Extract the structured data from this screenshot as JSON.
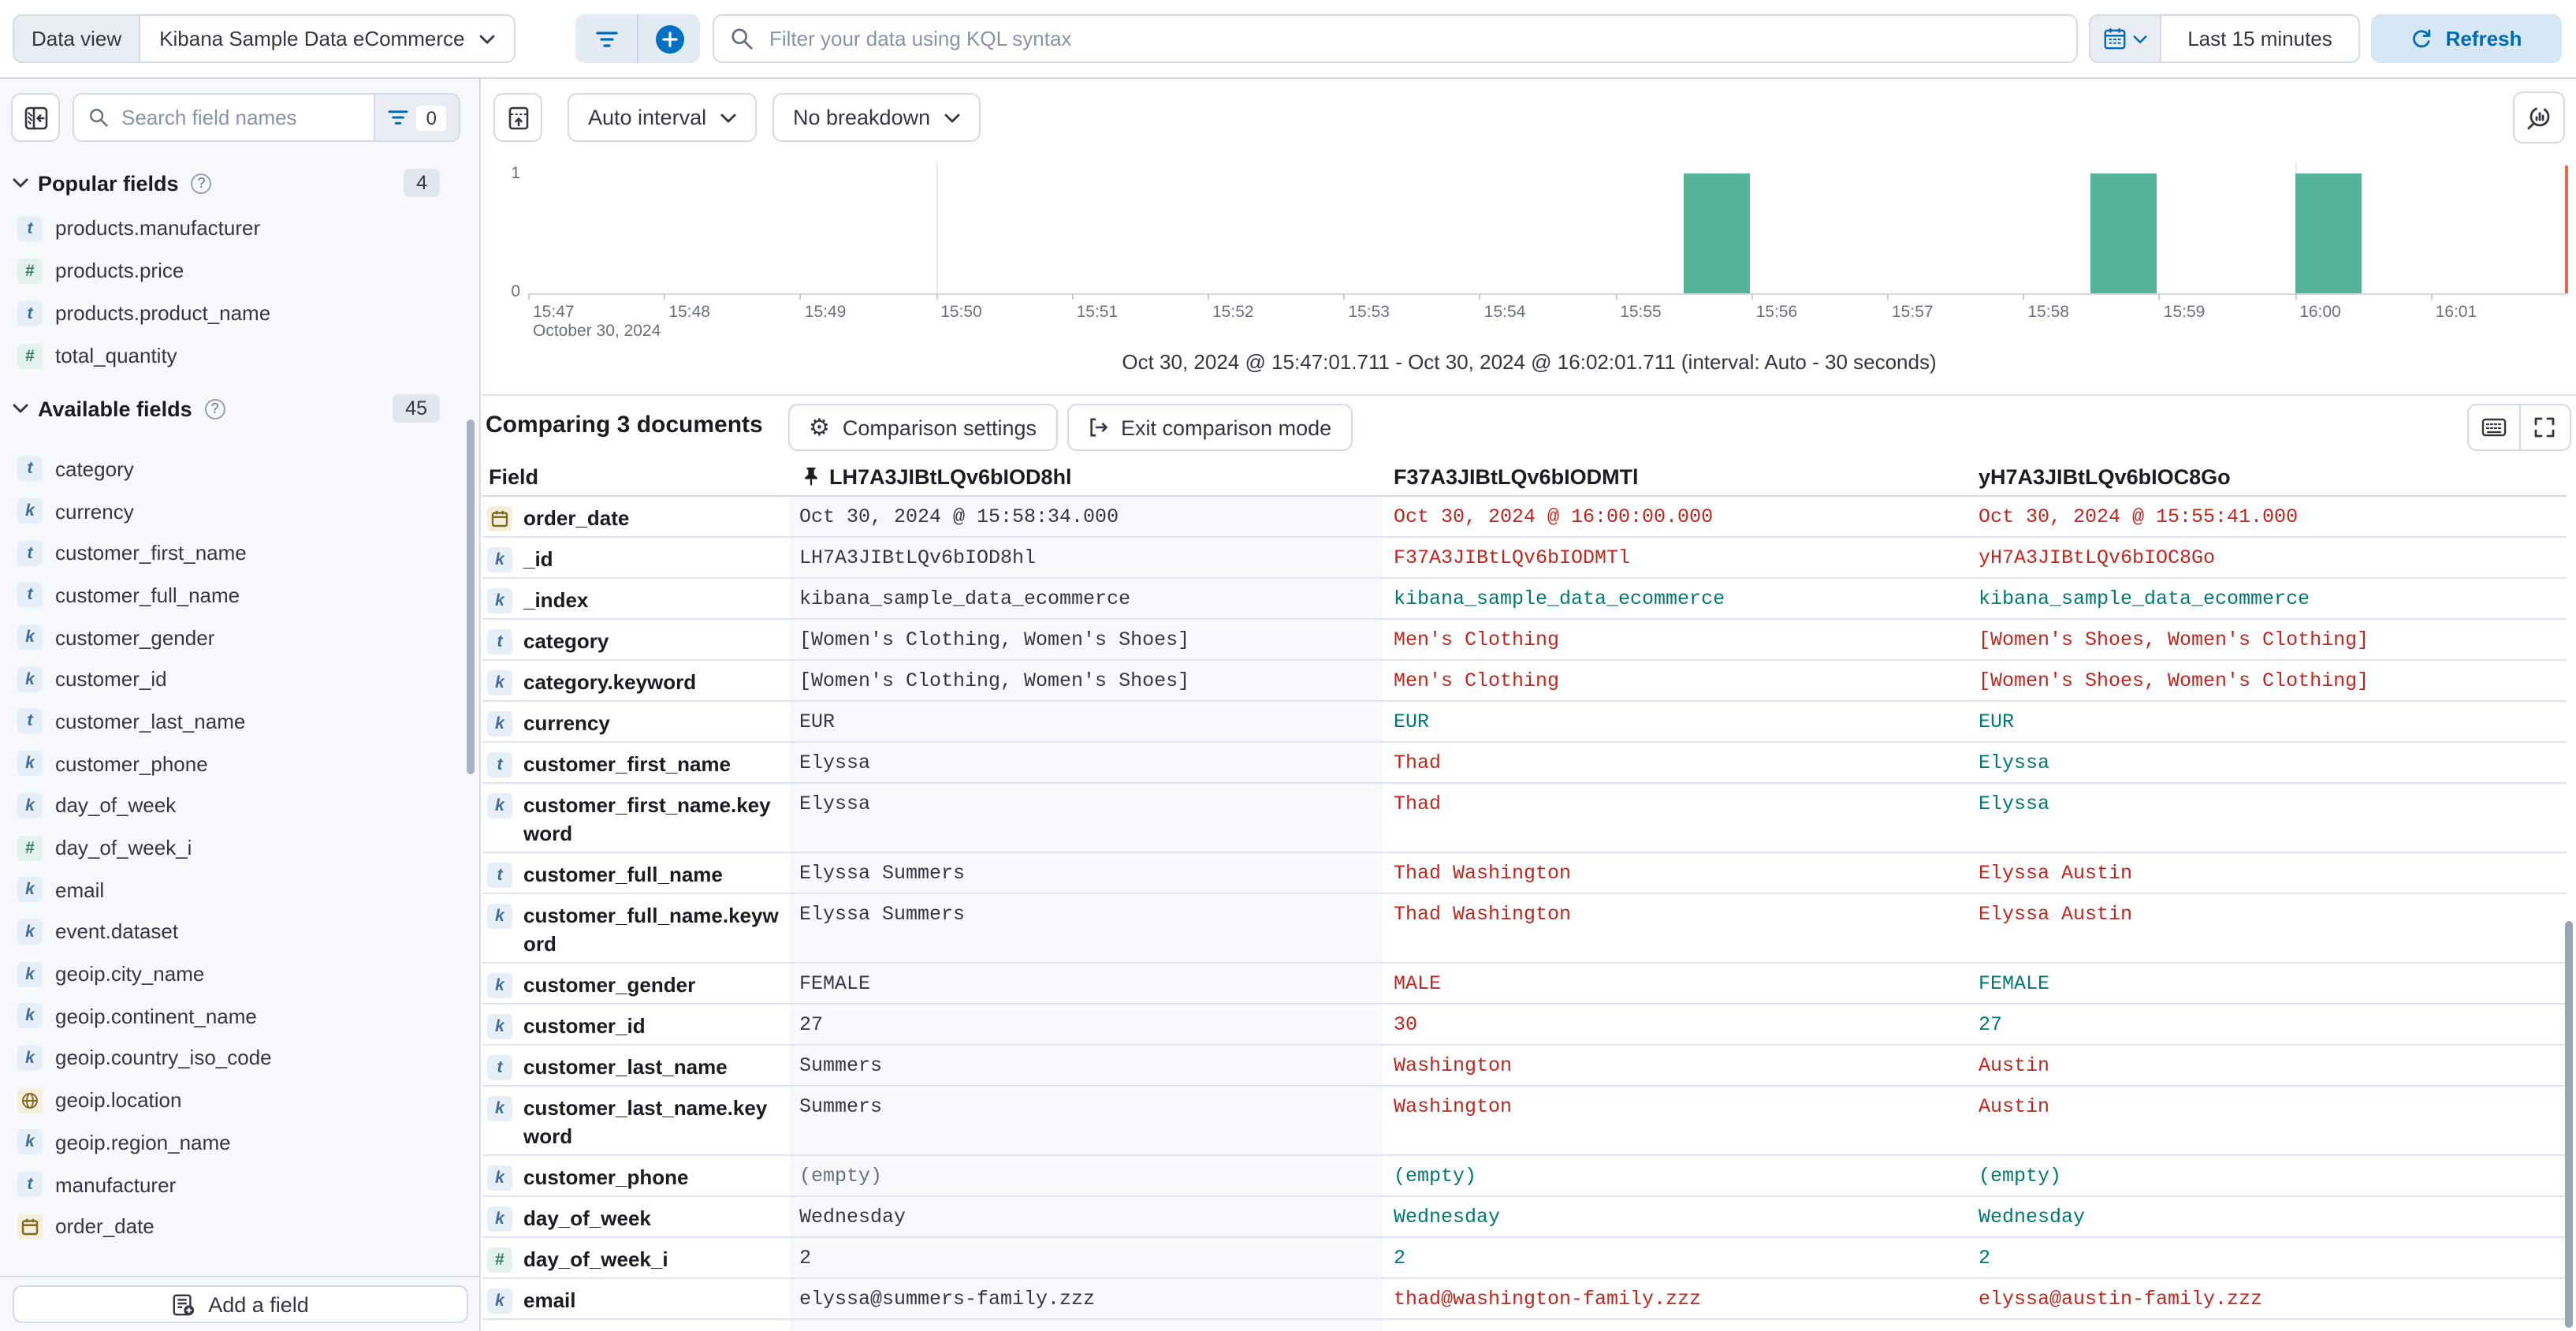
{
  "colors": {
    "accent_blue": "#0071c2",
    "link_blue": "#006bb4",
    "diff_changed_red": "#bd271e",
    "diff_same_teal": "#007871",
    "bar_green": "#54b399",
    "sidebar_bg": "#f7f8fc",
    "border": "#d3dae6"
  },
  "topbar": {
    "data_view_label": "Data view",
    "data_view_value": "Kibana Sample Data eCommerce",
    "kql_placeholder": "Filter your data using KQL syntax",
    "time_range": "Last 15 minutes",
    "refresh_label": "Refresh"
  },
  "sidebar": {
    "search_placeholder": "Search field names",
    "filter_count": "0",
    "popular": {
      "label": "Popular fields",
      "count": "4",
      "items": [
        {
          "token": "text",
          "name": "products.manufacturer"
        },
        {
          "token": "number",
          "name": "products.price"
        },
        {
          "token": "text",
          "name": "products.product_name"
        },
        {
          "token": "number",
          "name": "total_quantity"
        }
      ]
    },
    "available": {
      "label": "Available fields",
      "count": "45",
      "items": [
        {
          "token": "text",
          "name": "category"
        },
        {
          "token": "keyword",
          "name": "currency"
        },
        {
          "token": "text",
          "name": "customer_first_name"
        },
        {
          "token": "text",
          "name": "customer_full_name"
        },
        {
          "token": "keyword",
          "name": "customer_gender"
        },
        {
          "token": "keyword",
          "name": "customer_id"
        },
        {
          "token": "text",
          "name": "customer_last_name"
        },
        {
          "token": "keyword",
          "name": "customer_phone"
        },
        {
          "token": "keyword",
          "name": "day_of_week"
        },
        {
          "token": "number",
          "name": "day_of_week_i"
        },
        {
          "token": "keyword",
          "name": "email"
        },
        {
          "token": "keyword",
          "name": "event.dataset"
        },
        {
          "token": "keyword",
          "name": "geoip.city_name"
        },
        {
          "token": "keyword",
          "name": "geoip.continent_name"
        },
        {
          "token": "keyword",
          "name": "geoip.country_iso_code"
        },
        {
          "token": "geo",
          "name": "geoip.location"
        },
        {
          "token": "keyword",
          "name": "geoip.region_name"
        },
        {
          "token": "text",
          "name": "manufacturer"
        },
        {
          "token": "date",
          "name": "order_date"
        }
      ]
    },
    "add_field_label": "Add a field"
  },
  "histogram": {
    "interval_label": "Auto interval",
    "breakdown_label": "No breakdown"
  },
  "chart_data": {
    "type": "bar",
    "x_ticks": [
      "15:47",
      "15:48",
      "15:49",
      "15:50",
      "15:51",
      "15:52",
      "15:53",
      "15:54",
      "15:55",
      "15:56",
      "15:57",
      "15:58",
      "15:59",
      "16:00",
      "16:01"
    ],
    "x_start": "15:47:00",
    "x_date_label": "October 30, 2024",
    "y_ticks": [
      "1",
      "0"
    ],
    "ylim": [
      0,
      1
    ],
    "gridlines": [
      "15:50",
      "16:00"
    ],
    "bars": [
      {
        "time": "15:55:30",
        "count": 1
      },
      {
        "time": "15:58:30",
        "count": 1
      },
      {
        "time": "16:00:00",
        "count": 1
      }
    ],
    "interval_seconds": 30,
    "time_range_label": "Oct 30, 2024 @ 15:47:01.711 - Oct 30, 2024 @ 16:02:01.711 (interval: Auto - 30 seconds)"
  },
  "comparison": {
    "title": "Comparing 3 documents",
    "settings_label": "Comparison settings",
    "exit_label": "Exit comparison mode",
    "columns": [
      "Field",
      "LH7A3JIBtLQv6bIOD8hl",
      "F37A3JIBtLQv6bIODMTl",
      "yH7A3JIBtLQv6bIOC8Go"
    ],
    "rows": [
      {
        "token": "date",
        "field": "order_date",
        "base": "Oct 30, 2024 @ 15:58:34.000",
        "doc1": {
          "value": "Oct 30, 2024 @ 16:00:00.000",
          "status": "diff"
        },
        "doc2": {
          "value": "Oct 30, 2024 @ 15:55:41.000",
          "status": "diff"
        }
      },
      {
        "token": "keyword",
        "field": "_id",
        "base": "LH7A3JIBtLQv6bIOD8hl",
        "doc1": {
          "value": "F37A3JIBtLQv6bIODMTl",
          "status": "diff"
        },
        "doc2": {
          "value": "yH7A3JIBtLQv6bIOC8Go",
          "status": "diff"
        }
      },
      {
        "token": "keyword",
        "field": "_index",
        "base": "kibana_sample_data_ecommerce",
        "doc1": {
          "value": "kibana_sample_data_ecommerce",
          "status": "same"
        },
        "doc2": {
          "value": "kibana_sample_data_ecommerce",
          "status": "same"
        }
      },
      {
        "token": "text",
        "field": "category",
        "base": "[Women's Clothing, Women's Shoes]",
        "doc1": {
          "value": "Men's Clothing",
          "status": "diff"
        },
        "doc2": {
          "value": "[Women's Shoes, Women's Clothing]",
          "status": "diff"
        }
      },
      {
        "token": "keyword",
        "field": "category.keyword",
        "base": "[Women's Clothing, Women's Shoes]",
        "doc1": {
          "value": "Men's Clothing",
          "status": "diff"
        },
        "doc2": {
          "value": "[Women's Shoes, Women's Clothing]",
          "status": "diff"
        }
      },
      {
        "token": "keyword",
        "field": "currency",
        "base": "EUR",
        "doc1": {
          "value": "EUR",
          "status": "same"
        },
        "doc2": {
          "value": "EUR",
          "status": "same"
        }
      },
      {
        "token": "text",
        "field": "customer_first_name",
        "base": "Elyssa",
        "doc1": {
          "value": "Thad",
          "status": "diff"
        },
        "doc2": {
          "value": "Elyssa",
          "status": "same"
        }
      },
      {
        "token": "keyword",
        "field": "customer_first_name.keyword",
        "tall": true,
        "base": "Elyssa",
        "doc1": {
          "value": "Thad",
          "status": "diff"
        },
        "doc2": {
          "value": "Elyssa",
          "status": "same"
        }
      },
      {
        "token": "text",
        "field": "customer_full_name",
        "base": "Elyssa Summers",
        "doc1": {
          "value": "Thad Washington",
          "status": "diff"
        },
        "doc2": {
          "value": "Elyssa Austin",
          "status": "diff"
        }
      },
      {
        "token": "keyword",
        "field": "customer_full_name.keyword",
        "tall": true,
        "base": "Elyssa Summers",
        "doc1": {
          "value": "Thad Washington",
          "status": "diff"
        },
        "doc2": {
          "value": "Elyssa Austin",
          "status": "diff"
        }
      },
      {
        "token": "keyword",
        "field": "customer_gender",
        "base": "FEMALE",
        "doc1": {
          "value": "MALE",
          "status": "diff"
        },
        "doc2": {
          "value": "FEMALE",
          "status": "same"
        }
      },
      {
        "token": "keyword",
        "field": "customer_id",
        "base": "27",
        "doc1": {
          "value": "30",
          "status": "diff"
        },
        "doc2": {
          "value": "27",
          "status": "same"
        }
      },
      {
        "token": "text",
        "field": "customer_last_name",
        "base": "Summers",
        "doc1": {
          "value": "Washington",
          "status": "diff"
        },
        "doc2": {
          "value": "Austin",
          "status": "diff"
        }
      },
      {
        "token": "keyword",
        "field": "customer_last_name.keyword",
        "tall": true,
        "base": "Summers",
        "doc1": {
          "value": "Washington",
          "status": "diff"
        },
        "doc2": {
          "value": "Austin",
          "status": "diff"
        }
      },
      {
        "token": "keyword",
        "field": "customer_phone",
        "base": "(empty)",
        "base_muted": true,
        "doc1": {
          "value": "(empty)",
          "status": "same"
        },
        "doc2": {
          "value": "(empty)",
          "status": "same"
        }
      },
      {
        "token": "keyword",
        "field": "day_of_week",
        "base": "Wednesday",
        "doc1": {
          "value": "Wednesday",
          "status": "same"
        },
        "doc2": {
          "value": "Wednesday",
          "status": "same"
        }
      },
      {
        "token": "number",
        "field": "day_of_week_i",
        "base": "2",
        "doc1": {
          "value": "2",
          "status": "same"
        },
        "doc2": {
          "value": "2",
          "status": "same"
        }
      },
      {
        "token": "keyword",
        "field": "email",
        "base": "elyssa@summers-family.zzz",
        "doc1": {
          "value": "thad@washington-family.zzz",
          "status": "diff"
        },
        "doc2": {
          "value": "elyssa@austin-family.zzz",
          "status": "diff"
        }
      }
    ]
  }
}
